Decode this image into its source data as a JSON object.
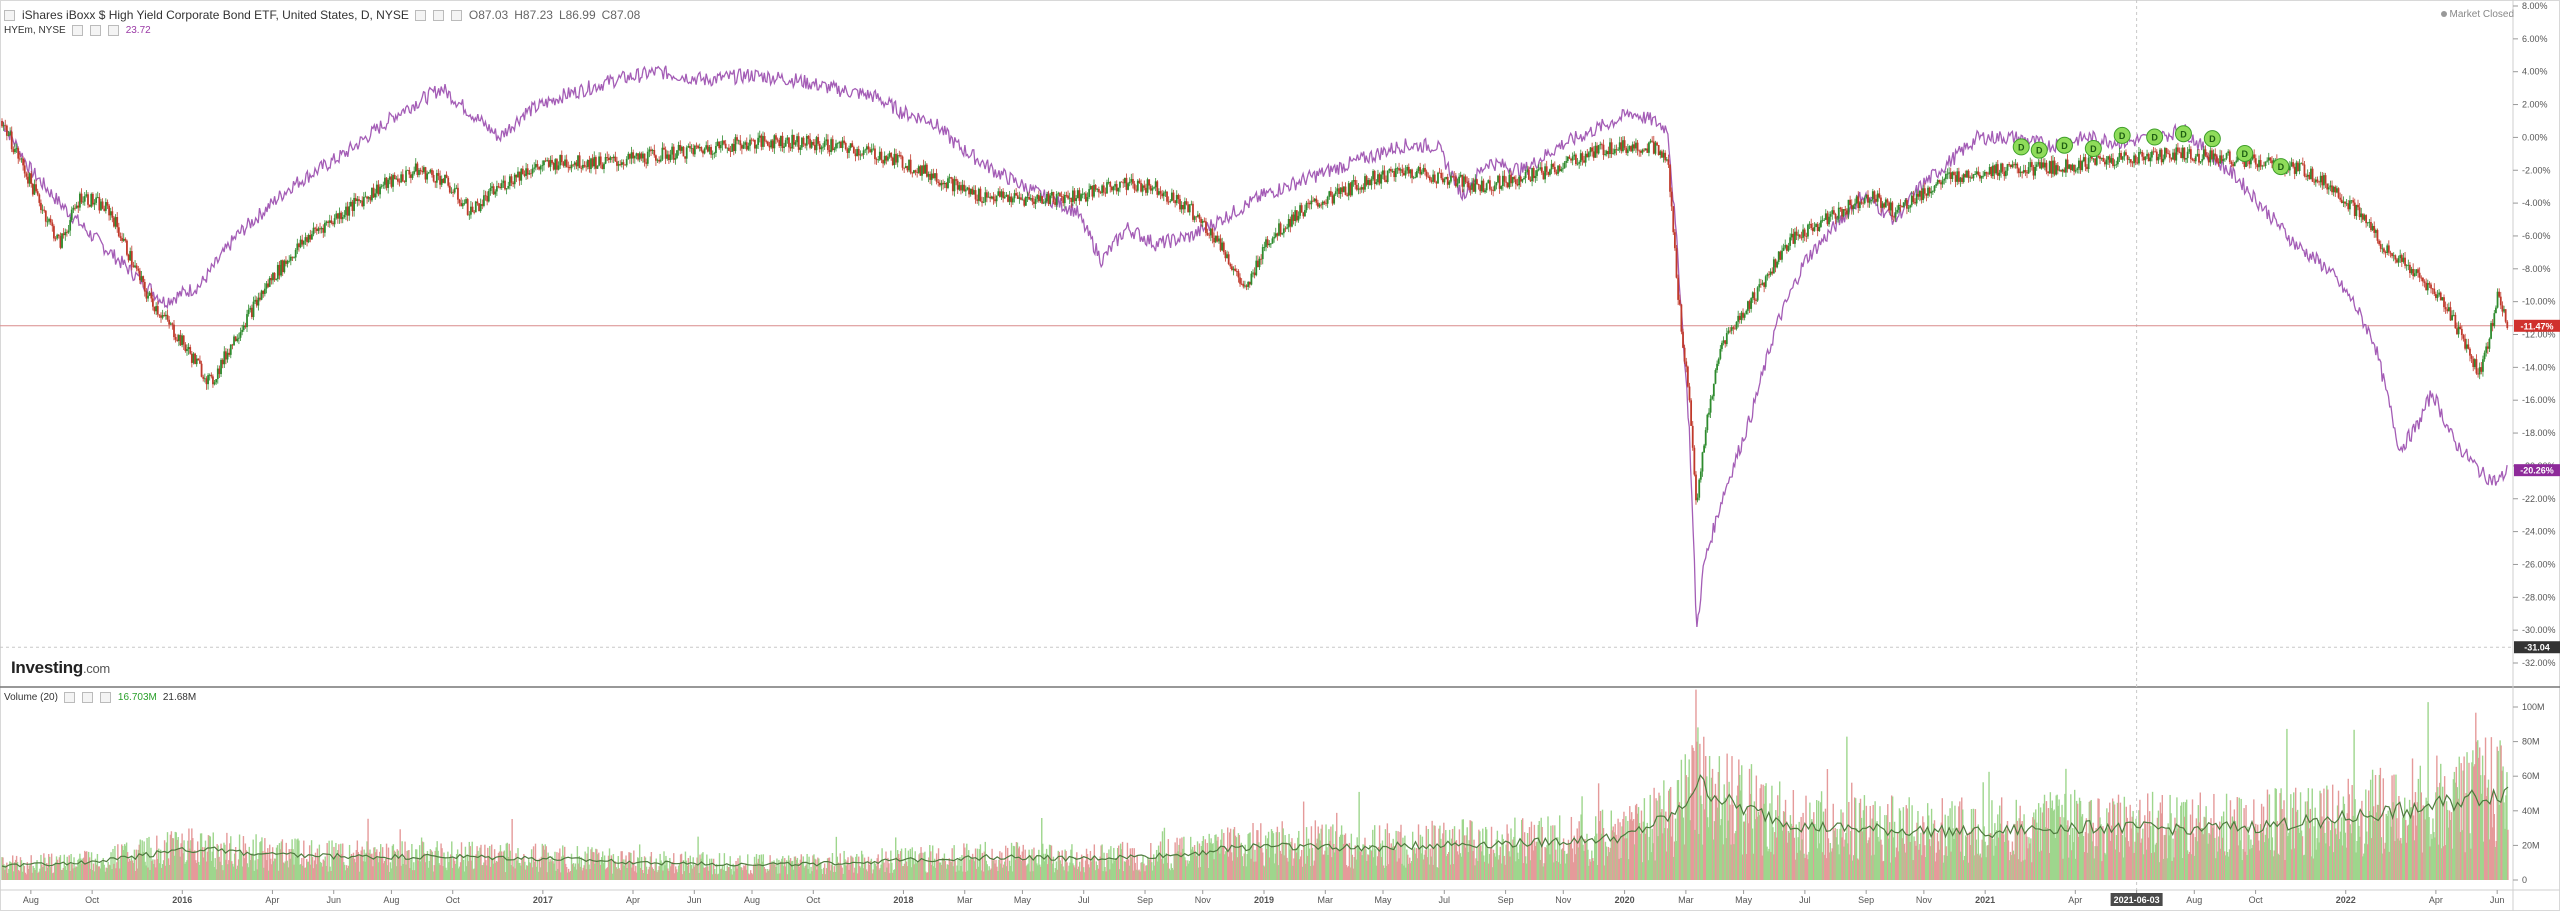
{
  "legend_main": {
    "title": "iShares iBoxx $ High Yield Corporate Bond ETF, United States, D, NYSE",
    "open": "O87.03",
    "high": "H87.23",
    "low": "L86.99",
    "close": "C87.08"
  },
  "legend_compare": {
    "symbol": "HYEm, NYSE",
    "value": "23.72"
  },
  "legend_volume": {
    "label": "Volume (20)",
    "value1": "16.703M",
    "value2": "21.68M"
  },
  "market_status": "Market Closed",
  "brand": {
    "name": "Investing",
    "suffix": ".com"
  },
  "colors": {
    "price_up": "#2e8b2e",
    "price_down": "#c0392b",
    "compare_line": "#a45db6",
    "volume_up": "#9ed68d",
    "volume_down": "#e59a9a",
    "volume_ma": "#4e7a3e",
    "crosshair_line": "#d98c8c"
  },
  "chart_data": {
    "type": "line",
    "x_axis": {
      "tick_labels": [
        "Aug",
        "Oct",
        "2016",
        "Apr",
        "Jun",
        "Aug",
        "Oct",
        "2017",
        "Apr",
        "Jun",
        "Aug",
        "Oct",
        "2018",
        "Mar",
        "May",
        "Jul",
        "Sep",
        "Nov",
        "2019",
        "Mar",
        "May",
        "Jul",
        "Sep",
        "Nov",
        "2020",
        "Mar",
        "May",
        "Jul",
        "Sep",
        "Nov",
        "2021",
        "Apr",
        "2021-06-03",
        "Aug",
        "Oct",
        "2022",
        "Apr",
        "Jun"
      ],
      "tick_months": [
        2015.58,
        2015.75,
        2016.0,
        2016.25,
        2016.42,
        2016.58,
        2016.75,
        2017.0,
        2017.25,
        2017.42,
        2017.58,
        2017.75,
        2018.0,
        2018.17,
        2018.33,
        2018.5,
        2018.67,
        2018.83,
        2019.0,
        2019.17,
        2019.33,
        2019.5,
        2019.67,
        2019.83,
        2020.0,
        2020.17,
        2020.33,
        2020.5,
        2020.67,
        2020.83,
        2021.0,
        2021.25,
        2021.42,
        2021.58,
        2021.75,
        2022.0,
        2022.25,
        2022.42
      ],
      "highlighted_label": "2021-06-03",
      "range": [
        2015.5,
        2022.45
      ]
    },
    "y_axis": {
      "unit": "percent",
      "range": [
        -32,
        8
      ],
      "tick_labels": [
        "8.00%",
        "6.00%",
        "4.00%",
        "2.00%",
        "0.00%",
        "-2.00%",
        "-4.00%",
        "-6.00%",
        "-8.00%",
        "-10.00%",
        "-12.00%",
        "-14.00%",
        "-16.00%",
        "-18.00%",
        "-20.00%",
        "-22.00%",
        "-24.00%",
        "-26.00%",
        "-28.00%",
        "-30.00%",
        "-32.00%"
      ],
      "tick_values": [
        8,
        6,
        4,
        2,
        0,
        -2,
        -4,
        -6,
        -8,
        -10,
        -12,
        -14,
        -16,
        -18,
        -20,
        -22,
        -24,
        -26,
        -28,
        -30,
        -32
      ],
      "badges": [
        {
          "label": "-11.47%",
          "value": -11.47,
          "color": "#d0312d"
        },
        {
          "label": "-20.26%",
          "value": -20.26,
          "color": "#8e2a9a"
        },
        {
          "label": "-31.04",
          "value": -31.04,
          "color": "#333333"
        }
      ]
    },
    "horizontal_line_value": -11.47,
    "series": [
      {
        "name": "iShares iBoxx $ High Yield Corporate Bond ETF",
        "kind": "candles",
        "points": [
          [
            2015.5,
            1.0
          ],
          [
            2015.58,
            -2.8
          ],
          [
            2015.66,
            -6.5
          ],
          [
            2015.72,
            -3.5
          ],
          [
            2015.8,
            -4.5
          ],
          [
            2015.9,
            -9.5
          ],
          [
            2016.0,
            -12.5
          ],
          [
            2016.08,
            -15.0
          ],
          [
            2016.15,
            -12.0
          ],
          [
            2016.25,
            -8.5
          ],
          [
            2016.35,
            -6.0
          ],
          [
            2016.45,
            -4.5
          ],
          [
            2016.55,
            -3.0
          ],
          [
            2016.65,
            -2.0
          ],
          [
            2016.72,
            -2.5
          ],
          [
            2016.8,
            -4.5
          ],
          [
            2016.88,
            -3.0
          ],
          [
            2016.95,
            -2.0
          ],
          [
            2017.05,
            -1.5
          ],
          [
            2017.2,
            -1.5
          ],
          [
            2017.35,
            -1.0
          ],
          [
            2017.5,
            -0.5
          ],
          [
            2017.65,
            -0.2
          ],
          [
            2017.8,
            -0.5
          ],
          [
            2017.92,
            -1.0
          ],
          [
            2018.0,
            -1.5
          ],
          [
            2018.1,
            -2.5
          ],
          [
            2018.2,
            -3.5
          ],
          [
            2018.35,
            -3.8
          ],
          [
            2018.5,
            -3.5
          ],
          [
            2018.6,
            -2.8
          ],
          [
            2018.7,
            -3.0
          ],
          [
            2018.8,
            -4.5
          ],
          [
            2018.88,
            -6.5
          ],
          [
            2018.95,
            -9.5
          ],
          [
            2019.0,
            -6.5
          ],
          [
            2019.1,
            -4.5
          ],
          [
            2019.2,
            -3.5
          ],
          [
            2019.3,
            -2.5
          ],
          [
            2019.4,
            -2.0
          ],
          [
            2019.5,
            -2.5
          ],
          [
            2019.6,
            -3.0
          ],
          [
            2019.7,
            -2.5
          ],
          [
            2019.8,
            -2.0
          ],
          [
            2019.9,
            -1.0
          ],
          [
            2019.98,
            -0.5
          ],
          [
            2020.08,
            -0.6
          ],
          [
            2020.12,
            -1.5
          ],
          [
            2020.15,
            -10.0
          ],
          [
            2020.18,
            -16.0
          ],
          [
            2020.2,
            -22.5
          ],
          [
            2020.23,
            -17.0
          ],
          [
            2020.27,
            -12.5
          ],
          [
            2020.32,
            -11.0
          ],
          [
            2020.38,
            -9.0
          ],
          [
            2020.45,
            -6.5
          ],
          [
            2020.52,
            -5.5
          ],
          [
            2020.6,
            -4.5
          ],
          [
            2020.68,
            -3.5
          ],
          [
            2020.75,
            -4.5
          ],
          [
            2020.82,
            -3.5
          ],
          [
            2020.9,
            -2.5
          ],
          [
            2021.0,
            -2.0
          ],
          [
            2021.1,
            -2.0
          ],
          [
            2021.2,
            -1.8
          ],
          [
            2021.3,
            -1.5
          ],
          [
            2021.42,
            -1.2
          ],
          [
            2021.55,
            -1.0
          ],
          [
            2021.65,
            -1.2
          ],
          [
            2021.75,
            -1.5
          ],
          [
            2021.82,
            -1.8
          ],
          [
            2021.88,
            -2.0
          ],
          [
            2021.95,
            -2.8
          ],
          [
            2022.05,
            -5.0
          ],
          [
            2022.12,
            -7.0
          ],
          [
            2022.2,
            -8.5
          ],
          [
            2022.27,
            -10.0
          ],
          [
            2022.33,
            -12.5
          ],
          [
            2022.37,
            -14.5
          ],
          [
            2022.4,
            -12.0
          ],
          [
            2022.42,
            -9.5
          ],
          [
            2022.45,
            -11.47
          ]
        ]
      },
      {
        "name": "HYEm, NYSE",
        "kind": "line",
        "points": [
          [
            2015.5,
            1.0
          ],
          [
            2015.58,
            -2.0
          ],
          [
            2015.66,
            -4.0
          ],
          [
            2015.75,
            -6.0
          ],
          [
            2015.85,
            -8.0
          ],
          [
            2015.95,
            -10.0
          ],
          [
            2016.05,
            -9.0
          ],
          [
            2016.15,
            -6.0
          ],
          [
            2016.3,
            -3.0
          ],
          [
            2016.45,
            -1.0
          ],
          [
            2016.6,
            1.5
          ],
          [
            2016.72,
            3.0
          ],
          [
            2016.8,
            1.5
          ],
          [
            2016.88,
            0.0
          ],
          [
            2016.95,
            1.5
          ],
          [
            2017.05,
            2.5
          ],
          [
            2017.2,
            3.5
          ],
          [
            2017.32,
            4.0
          ],
          [
            2017.45,
            3.5
          ],
          [
            2017.58,
            3.8
          ],
          [
            2017.7,
            3.5
          ],
          [
            2017.8,
            3.0
          ],
          [
            2017.92,
            2.5
          ],
          [
            2018.0,
            1.5
          ],
          [
            2018.08,
            1.0
          ],
          [
            2018.15,
            -0.5
          ],
          [
            2018.25,
            -2.0
          ],
          [
            2018.38,
            -3.5
          ],
          [
            2018.48,
            -4.5
          ],
          [
            2018.55,
            -7.5
          ],
          [
            2018.62,
            -5.5
          ],
          [
            2018.7,
            -6.5
          ],
          [
            2018.8,
            -6.0
          ],
          [
            2018.92,
            -4.5
          ],
          [
            2019.0,
            -3.5
          ],
          [
            2019.12,
            -2.5
          ],
          [
            2019.25,
            -1.5
          ],
          [
            2019.38,
            -0.5
          ],
          [
            2019.48,
            -0.5
          ],
          [
            2019.55,
            -3.5
          ],
          [
            2019.62,
            -1.5
          ],
          [
            2019.72,
            -2.0
          ],
          [
            2019.82,
            -0.5
          ],
          [
            2019.92,
            0.5
          ],
          [
            2020.02,
            1.5
          ],
          [
            2020.08,
            1.0
          ],
          [
            2020.12,
            0.5
          ],
          [
            2020.15,
            -8.0
          ],
          [
            2020.18,
            -18.0
          ],
          [
            2020.2,
            -30.0
          ],
          [
            2020.22,
            -26.0
          ],
          [
            2020.27,
            -22.0
          ],
          [
            2020.35,
            -17.0
          ],
          [
            2020.42,
            -11.5
          ],
          [
            2020.5,
            -7.5
          ],
          [
            2020.58,
            -5.5
          ],
          [
            2020.66,
            -3.5
          ],
          [
            2020.75,
            -5.0
          ],
          [
            2020.82,
            -3.0
          ],
          [
            2020.9,
            -1.5
          ],
          [
            2020.98,
            0.0
          ],
          [
            2021.08,
            0.0
          ],
          [
            2021.18,
            -0.5
          ],
          [
            2021.28,
            0.0
          ],
          [
            2021.38,
            -0.3
          ],
          [
            2021.48,
            0.0
          ],
          [
            2021.55,
            0.5
          ],
          [
            2021.62,
            -1.0
          ],
          [
            2021.7,
            -2.5
          ],
          [
            2021.78,
            -4.5
          ],
          [
            2021.86,
            -6.5
          ],
          [
            2021.95,
            -8.0
          ],
          [
            2022.02,
            -10.0
          ],
          [
            2022.08,
            -12.5
          ],
          [
            2022.15,
            -19.0
          ],
          [
            2022.2,
            -17.5
          ],
          [
            2022.24,
            -15.5
          ],
          [
            2022.3,
            -18.5
          ],
          [
            2022.38,
            -20.5
          ],
          [
            2022.42,
            -21.0
          ],
          [
            2022.45,
            -20.26
          ]
        ]
      },
      {
        "name": "Volume (20)",
        "kind": "volume",
        "unit": "M",
        "y_range": [
          0,
          100
        ],
        "tick_labels": [
          "100M",
          "80M",
          "60M",
          "40M",
          "20M",
          "0"
        ],
        "tick_values": [
          100,
          80,
          60,
          40,
          20,
          0
        ],
        "points": [
          [
            2015.5,
            8
          ],
          [
            2015.75,
            10
          ],
          [
            2015.9,
            14
          ],
          [
            2016.0,
            18
          ],
          [
            2016.25,
            14
          ],
          [
            2016.5,
            13
          ],
          [
            2016.75,
            13
          ],
          [
            2017.0,
            12
          ],
          [
            2017.25,
            10
          ],
          [
            2017.5,
            9
          ],
          [
            2017.75,
            9
          ],
          [
            2018.0,
            11
          ],
          [
            2018.25,
            13
          ],
          [
            2018.5,
            12
          ],
          [
            2018.75,
            14
          ],
          [
            2019.0,
            20
          ],
          [
            2019.25,
            18
          ],
          [
            2019.5,
            20
          ],
          [
            2019.75,
            21
          ],
          [
            2020.0,
            24
          ],
          [
            2020.15,
            38
          ],
          [
            2020.2,
            55
          ],
          [
            2020.3,
            42
          ],
          [
            2020.5,
            30
          ],
          [
            2020.75,
            28
          ],
          [
            2021.0,
            27
          ],
          [
            2021.25,
            30
          ],
          [
            2021.5,
            29
          ],
          [
            2021.75,
            30
          ],
          [
            2022.0,
            35
          ],
          [
            2022.25,
            42
          ],
          [
            2022.45,
            50
          ]
        ]
      }
    ],
    "dividend_markers": {
      "label": "D",
      "points": [
        [
          2021.1,
          -0.7
        ],
        [
          2021.15,
          -0.9
        ],
        [
          2021.22,
          -0.6
        ],
        [
          2021.3,
          -0.8
        ],
        [
          2021.38,
          0.0
        ],
        [
          2021.47,
          -0.1
        ],
        [
          2021.55,
          0.1
        ],
        [
          2021.63,
          -0.2
        ],
        [
          2021.72,
          -1.1
        ],
        [
          2021.82,
          -1.9
        ]
      ]
    }
  }
}
